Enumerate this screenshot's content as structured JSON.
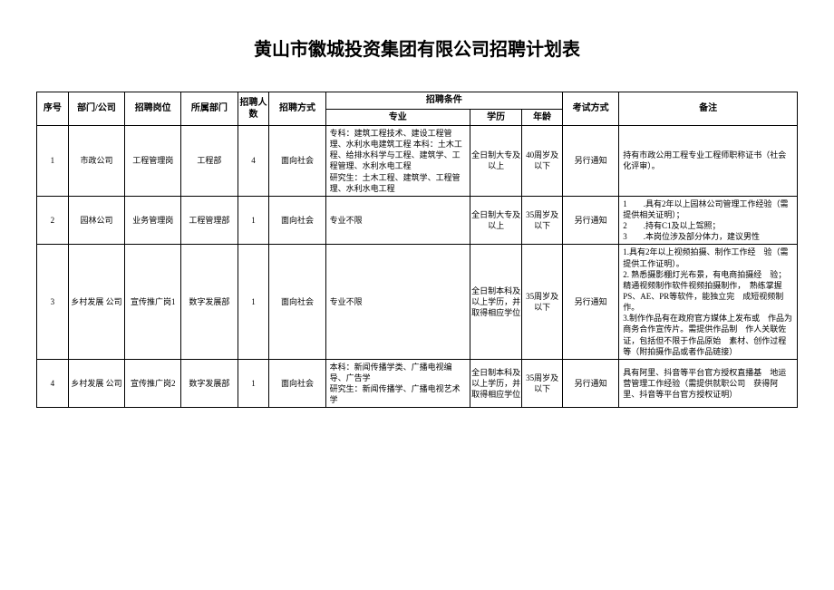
{
  "title": "黄山市徽城投资集团有限公司招聘计划表",
  "headers": {
    "seq": "序号",
    "dept": "部门/公司",
    "job": "招聘岗位",
    "sub": "所属部门",
    "count": "招聘人数",
    "method": "招聘方式",
    "cond": "招聘条件",
    "major": "专业",
    "edu": "学历",
    "age": "年龄",
    "exam": "考试方式",
    "remark": "备注"
  },
  "rows": [
    {
      "seq": "1",
      "dept": "市政公司",
      "job": "工程管理岗",
      "sub": "工程部",
      "count": "4",
      "method": "面向社会",
      "major": "专科：建筑工程技术、建设工程管理、水利水电建筑工程 本科：土木工程、给排水科学与工程、建筑学、工程管理、水利水电工程\n研究生：土木工程、建筑学、工程管理、水利水电工程",
      "edu": "全日制大专及以上",
      "age": "40周岁及以下",
      "exam": "另行通知",
      "remark": "持有市政公用工程专业工程师职称证书（社会化评审）。"
    },
    {
      "seq": "2",
      "dept": "园林公司",
      "job": "业务管理岗",
      "sub": "工程管理部",
      "count": "1",
      "method": "面向社会",
      "major": "专业不限",
      "edu": "全日制大专及以上",
      "age": "35周岁及以下",
      "exam": "另行通知",
      "remark": "1　　.具有2年以上园林公司管理工作经验（需提供相关证明）；\n2　　.持有C1及以上驾照；\n3　　.本岗位涉及部分体力，建议男性"
    },
    {
      "seq": "3",
      "dept": "乡村发展 公司",
      "job": "宣传推广岗1",
      "sub": "数字发展部",
      "count": "1",
      "method": "面向社会",
      "major": "专业不限",
      "edu": "全日制本科及以上学历，并取得相应学位",
      "age": "35周岁及以下",
      "exam": "另行通知",
      "remark": "1.具有2年以上视频拍摄、制作工作经　验（需提供工作证明）。\n2. 熟悉摄影棚灯光布景，有电商拍摄经　验；精通视频制作软件视频拍摄制作，　熟练掌握PS、AE、PR等软件，能独立完　成短视频制作。\n3.制作作品有在政府官方媒体上发布或　作品为商务合作宣传片。需提供作品制　作人关联佐证，包括但不限于作品原始　素材、创作过程等（附拍摄作品或者作品链接）"
    },
    {
      "seq": "4",
      "dept": "乡村发展 公司",
      "job": "宣传推广岗2",
      "sub": "数字发展部",
      "count": "1",
      "method": "面向社会",
      "major": "本科：新闻传播学类、广播电视编导、广告学\n研究生：新闻传播学、广播电视艺术学",
      "edu": "全日制本科及以上学历，并取得相应学位",
      "age": "35周岁及以下",
      "exam": "另行通知",
      "remark": "具有阿里、抖音等平台官方授权直播基　地运营管理工作经验（需提供就职公司　获得阿里、抖音等平台官方授权证明）"
    }
  ]
}
